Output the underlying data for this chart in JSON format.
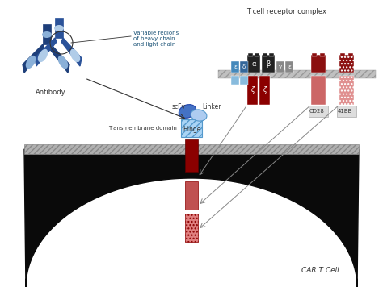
{
  "bg_color": "#ffffff",
  "cell_color": "#111111",
  "title": "T cell receptor complex",
  "antibody_label": "Antibody",
  "car_t_label": "CAR T Cell",
  "scfv_label": "scFv",
  "linker_label": "Linker",
  "hinge_label": "Hinge",
  "tm_label": "Transmembrane domain",
  "var_regions_label": "Variable regions\nof heavy chain\nand light chain",
  "tcr_label": "T cell receptor complex"
}
